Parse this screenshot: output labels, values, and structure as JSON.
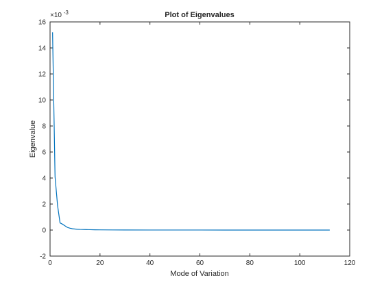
{
  "chart_data": {
    "type": "line",
    "title": "Plot of Eigenvalues",
    "xlabel": "Mode of Variation",
    "ylabel": "Eigenvalue",
    "y_exponent_base": "×10",
    "y_exponent_power": "-3",
    "xlim": [
      0,
      120
    ],
    "ylim": [
      -2,
      16
    ],
    "xticks": [
      0,
      20,
      40,
      60,
      80,
      100,
      120
    ],
    "yticks": [
      -2,
      0,
      2,
      4,
      6,
      8,
      10,
      12,
      14,
      16
    ],
    "grid": false,
    "line_color": "#0072bd",
    "series": [
      {
        "x": [
          1,
          2,
          3,
          4,
          5,
          6,
          7,
          8,
          9,
          10,
          11,
          12,
          14,
          16,
          18,
          20,
          25,
          30,
          40,
          50,
          60,
          70,
          80,
          90,
          100,
          110,
          112
        ],
        "values": [
          15.2,
          4.1,
          1.9,
          0.55,
          0.45,
          0.32,
          0.2,
          0.14,
          0.1,
          0.08,
          0.06,
          0.05,
          0.04,
          0.03,
          0.02,
          0.015,
          0.01,
          0.006,
          0.004,
          0.003,
          0.002,
          0.0015,
          0.001,
          0.001,
          0.0008,
          0.0006,
          0.0005
        ]
      }
    ]
  }
}
